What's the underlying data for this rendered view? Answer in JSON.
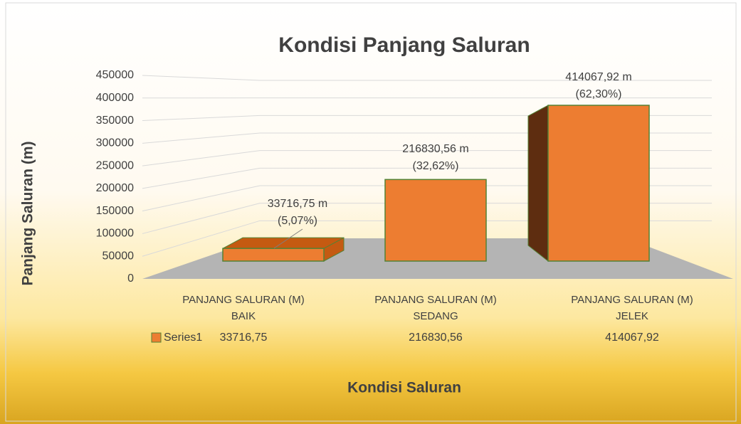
{
  "chart_data": {
    "type": "bar3d",
    "title": "Kondisi Panjang Saluran",
    "xlabel": "Kondisi Saluran",
    "ylabel": "Panjang Saluran (m)",
    "categories": [
      "PANJANG SALURAN (M) BAIK",
      "PANJANG SALURAN (M) SEDANG",
      "PANJANG SALURAN (M) JELEK"
    ],
    "series": [
      {
        "name": "Series1",
        "color": "#ed7d31",
        "values": [
          33716.75,
          216830.56,
          414067.92
        ],
        "value_labels": [
          "33716,75 m (5,07%)",
          "216830,56 m (32,62%)",
          "414067,92 m (62,30%)"
        ],
        "table_labels": [
          "33716,75",
          "216830,56",
          "414067,92"
        ]
      }
    ],
    "ylim": [
      0,
      450000
    ],
    "yticks": [
      0,
      50000,
      100000,
      150000,
      200000,
      250000,
      300000,
      350000,
      400000,
      450000
    ],
    "grid": true,
    "data_table": true
  }
}
